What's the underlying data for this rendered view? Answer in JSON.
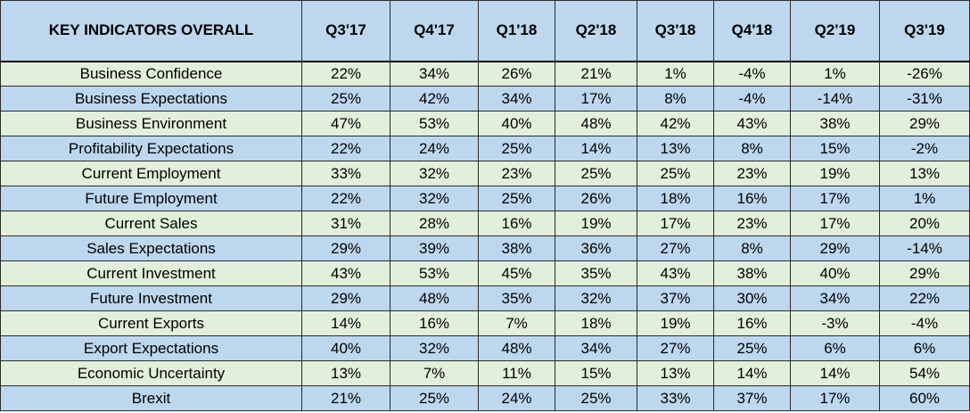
{
  "colors": {
    "header_bg": "#bdd7ee",
    "row_green": "#e2efda",
    "row_blue": "#bdd7ee",
    "border": "#2b2b2b"
  },
  "chart_data": {
    "type": "table",
    "columns": [
      "KEY INDICATORS OVERALL",
      "Q3'17",
      "Q4'17",
      "Q1'18",
      "Q2'18",
      "Q3'18",
      "Q4'18",
      "Q2'19",
      "Q3'19"
    ],
    "rows": [
      {
        "label": "Business Confidence",
        "values": [
          "22%",
          "34%",
          "26%",
          "21%",
          "1%",
          "-4%",
          "1%",
          "-26%"
        ]
      },
      {
        "label": "Business Expectations",
        "values": [
          "25%",
          "42%",
          "34%",
          "17%",
          "8%",
          "-4%",
          "-14%",
          "-31%"
        ]
      },
      {
        "label": "Business Environment",
        "values": [
          "47%",
          "53%",
          "40%",
          "48%",
          "42%",
          "43%",
          "38%",
          "29%"
        ]
      },
      {
        "label": "Profitability Expectations",
        "values": [
          "22%",
          "24%",
          "25%",
          "14%",
          "13%",
          "8%",
          "15%",
          "-2%"
        ]
      },
      {
        "label": "Current Employment",
        "values": [
          "33%",
          "32%",
          "23%",
          "25%",
          "25%",
          "23%",
          "19%",
          "13%"
        ]
      },
      {
        "label": "Future Employment",
        "values": [
          "22%",
          "32%",
          "25%",
          "26%",
          "18%",
          "16%",
          "17%",
          "1%"
        ]
      },
      {
        "label": "Current Sales",
        "values": [
          "31%",
          "28%",
          "16%",
          "19%",
          "17%",
          "23%",
          "17%",
          "20%"
        ]
      },
      {
        "label": "Sales Expectations",
        "values": [
          "29%",
          "39%",
          "38%",
          "36%",
          "27%",
          "8%",
          "29%",
          "-14%"
        ]
      },
      {
        "label": "Current Investment",
        "values": [
          "43%",
          "53%",
          "45%",
          "35%",
          "43%",
          "38%",
          "40%",
          "29%"
        ]
      },
      {
        "label": "Future Investment",
        "values": [
          "29%",
          "48%",
          "35%",
          "32%",
          "37%",
          "30%",
          "34%",
          "22%"
        ]
      },
      {
        "label": "Current Exports",
        "values": [
          "14%",
          "16%",
          "7%",
          "18%",
          "19%",
          "16%",
          "-3%",
          "-4%"
        ]
      },
      {
        "label": "Export Expectations",
        "values": [
          "40%",
          "32%",
          "48%",
          "34%",
          "27%",
          "25%",
          "6%",
          "6%"
        ]
      },
      {
        "label": "Economic Uncertainty",
        "values": [
          "13%",
          "7%",
          "11%",
          "15%",
          "13%",
          "14%",
          "14%",
          "54%"
        ]
      },
      {
        "label": "Brexit",
        "values": [
          "21%",
          "25%",
          "24%",
          "25%",
          "33%",
          "37%",
          "17%",
          "60%"
        ]
      }
    ]
  }
}
